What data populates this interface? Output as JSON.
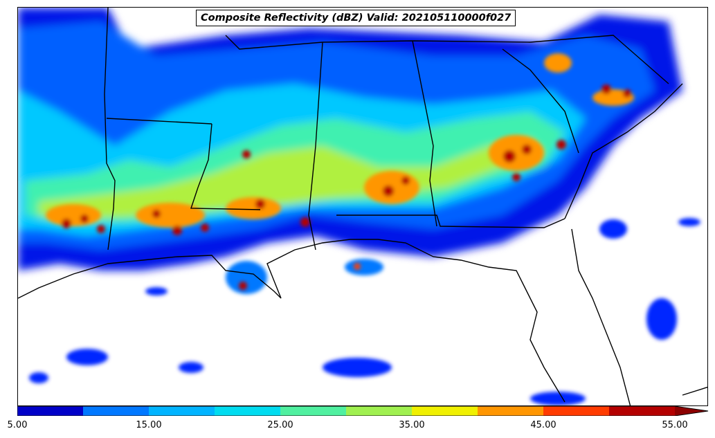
{
  "title": "Composite Reflectivity (dBZ) Valid: 202105110000f027",
  "colorbar": {
    "levels": [
      5,
      10,
      15,
      20,
      25,
      30,
      35,
      40,
      45,
      50,
      55
    ],
    "colors": [
      "#0000c8",
      "#0028ff",
      "#0078ff",
      "#00b4ff",
      "#00dcf0",
      "#50f0a0",
      "#a0f050",
      "#f0f000",
      "#ff9600",
      "#ff3c00",
      "#b40000"
    ],
    "extend_color": "#8c0000",
    "tick_labels": [
      "5.00",
      "15.00",
      "25.00",
      "35.00",
      "45.00",
      "55.00"
    ]
  },
  "map": {
    "region": "Southeastern United States and northern Gulf of Mexico",
    "field": "Composite Reflectivity",
    "units": "dBZ",
    "background": "#ffffff",
    "boundary_color": "#000000"
  }
}
